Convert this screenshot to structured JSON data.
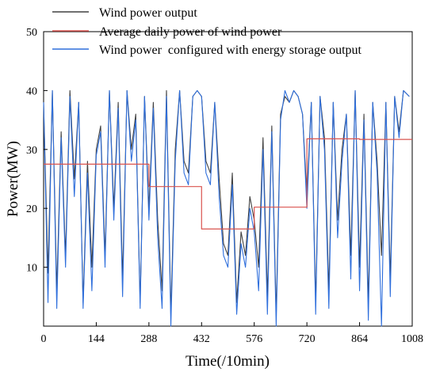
{
  "chart_data": {
    "type": "line",
    "title": "",
    "xlabel": "Time(/10min)",
    "ylabel": "Power(MW)",
    "xlim": [
      0,
      1008
    ],
    "ylim": [
      0,
      50
    ],
    "x_ticks": [
      0,
      144,
      288,
      432,
      576,
      720,
      864,
      1008
    ],
    "y_ticks": [
      10,
      20,
      30,
      40,
      50
    ],
    "grid": false,
    "legend_position": "top-right",
    "colors": {
      "wind_power_output": "#404040",
      "average_daily": "#d9534f",
      "storage_output": "#2f6fdc"
    },
    "series": [
      {
        "name": "Wind power output",
        "key": "wind",
        "x": [
          0,
          12,
          24,
          36,
          48,
          60,
          72,
          84,
          96,
          108,
          120,
          132,
          144,
          156,
          168,
          180,
          192,
          204,
          216,
          228,
          240,
          252,
          264,
          276,
          288,
          300,
          312,
          324,
          336,
          348,
          360,
          372,
          384,
          396,
          408,
          420,
          432,
          444,
          456,
          468,
          480,
          492,
          504,
          516,
          528,
          540,
          552,
          564,
          576,
          588,
          600,
          612,
          624,
          636,
          648,
          660,
          672,
          684,
          696,
          708,
          720,
          732,
          744,
          756,
          768,
          780,
          792,
          804,
          816,
          828,
          840,
          852,
          864,
          876,
          888,
          900,
          912,
          924,
          936,
          948,
          960,
          972,
          984,
          1000
        ],
        "y": [
          38,
          9,
          40,
          6,
          33,
          12,
          40,
          25,
          38,
          4,
          28,
          10,
          30,
          34,
          12,
          40,
          20,
          38,
          8,
          40,
          30,
          36,
          4,
          39,
          20,
          38,
          18,
          6,
          40,
          2,
          30,
          40,
          28,
          26,
          39,
          40,
          39,
          28,
          26,
          38,
          25,
          14,
          12,
          26,
          4,
          16,
          12,
          22,
          18,
          10,
          32,
          5,
          34,
          2,
          36,
          39,
          38,
          40,
          39,
          36,
          22,
          38,
          4,
          39,
          32,
          6,
          38,
          18,
          30,
          36,
          12,
          40,
          10,
          36,
          4,
          38,
          28,
          12,
          38,
          8,
          39,
          33,
          40,
          39
        ]
      },
      {
        "name": "Average daily power of wind power",
        "key": "avg",
        "x": [
          0,
          144,
          144,
          288,
          288,
          432,
          432,
          576,
          576,
          720,
          720,
          864,
          864,
          1008
        ],
        "y": [
          27.5,
          27.5,
          27.5,
          27.5,
          23.7,
          23.7,
          16.5,
          16.5,
          20.2,
          20.2,
          31.8,
          31.8,
          31.7,
          31.7
        ]
      },
      {
        "name": "Wind power  configured with energy storage output",
        "key": "storage",
        "x": [
          0,
          12,
          24,
          36,
          48,
          60,
          72,
          84,
          96,
          108,
          120,
          132,
          144,
          156,
          168,
          180,
          192,
          204,
          216,
          228,
          240,
          252,
          264,
          276,
          288,
          300,
          312,
          324,
          336,
          348,
          360,
          372,
          384,
          396,
          408,
          420,
          432,
          444,
          456,
          468,
          480,
          492,
          504,
          516,
          528,
          540,
          552,
          564,
          576,
          588,
          600,
          612,
          624,
          636,
          648,
          660,
          672,
          684,
          696,
          708,
          720,
          732,
          744,
          756,
          768,
          780,
          792,
          804,
          816,
          828,
          840,
          852,
          864,
          876,
          888,
          900,
          912,
          924,
          936,
          948,
          960,
          972,
          984,
          1000
        ],
        "y": [
          38,
          4,
          40,
          3,
          32,
          10,
          39,
          22,
          38,
          3,
          26,
          6,
          29,
          33,
          10,
          40,
          18,
          37,
          5,
          40,
          28,
          35,
          3,
          39,
          18,
          37,
          15,
          3,
          39,
          0,
          28,
          40,
          26,
          24,
          39,
          40,
          39,
          26,
          24,
          38,
          22,
          12,
          10,
          24,
          2,
          14,
          10,
          20,
          16,
          6,
          30,
          2,
          33,
          0,
          35,
          40,
          38,
          40,
          39,
          36,
          20,
          38,
          2,
          39,
          30,
          3,
          38,
          15,
          28,
          36,
          8,
          40,
          6,
          35,
          1,
          38,
          26,
          0,
          38,
          5,
          39,
          32,
          40,
          39
        ]
      }
    ],
    "legend": [
      "Wind power output",
      "Average daily power of wind power",
      "Wind power  configured with energy storage output"
    ]
  }
}
